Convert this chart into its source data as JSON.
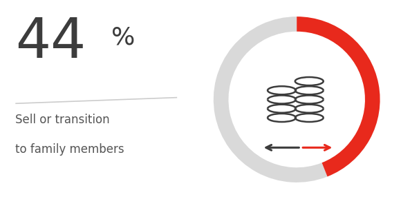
{
  "percentage": 44,
  "big_number": "44",
  "percent_sign": "%",
  "label_line1": "Sell or transition",
  "label_line2": "to family members",
  "red_color": "#e8291c",
  "gray_color": "#d9d9d9",
  "dark_color": "#3c3c3c",
  "background_color": "#ffffff",
  "text_color": "#555555",
  "line_color": "#cccccc",
  "fig_width": 5.8,
  "fig_height": 2.89,
  "dpi": 100
}
